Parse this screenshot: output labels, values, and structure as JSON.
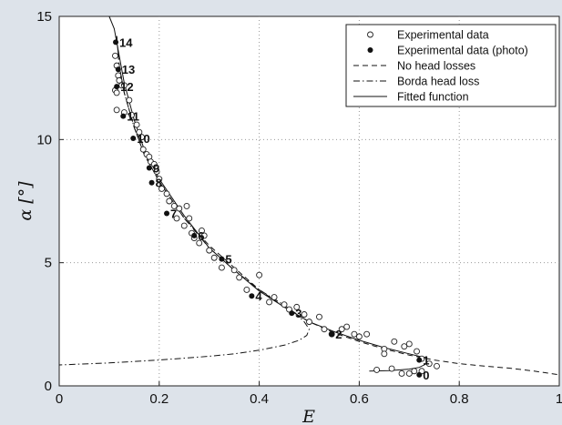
{
  "chart_data": {
    "type": "scatter",
    "title": "",
    "xlabel": "E",
    "ylabel": "α [°]",
    "xlim": [
      0,
      1
    ],
    "ylim": [
      0,
      15
    ],
    "xticks": [
      "0",
      "0.2",
      "0.4",
      "0.6",
      "0.8",
      "1"
    ],
    "xtick_values": [
      0,
      0.2,
      0.4,
      0.6,
      0.8,
      1
    ],
    "yticks": [
      "0",
      "5",
      "10",
      "15"
    ],
    "ytick_values": [
      0,
      5,
      10,
      15
    ],
    "grid": "dotted",
    "legend_position": "top-right",
    "series": [
      {
        "name": "Experimental data",
        "marker": "open-circle",
        "points": [
          [
            0.112,
            13.4
          ],
          [
            0.115,
            13.0
          ],
          [
            0.118,
            12.6
          ],
          [
            0.12,
            12.4
          ],
          [
            0.125,
            12.2
          ],
          [
            0.112,
            12.0
          ],
          [
            0.115,
            11.9
          ],
          [
            0.13,
            12.2
          ],
          [
            0.14,
            11.6
          ],
          [
            0.115,
            11.2
          ],
          [
            0.13,
            11.1
          ],
          [
            0.145,
            11.0
          ],
          [
            0.155,
            10.6
          ],
          [
            0.16,
            10.3
          ],
          [
            0.165,
            10.1
          ],
          [
            0.168,
            9.6
          ],
          [
            0.175,
            9.4
          ],
          [
            0.18,
            9.3
          ],
          [
            0.183,
            9.1
          ],
          [
            0.19,
            9.0
          ],
          [
            0.195,
            8.7
          ],
          [
            0.2,
            8.4
          ],
          [
            0.205,
            8.0
          ],
          [
            0.215,
            7.8
          ],
          [
            0.22,
            7.5
          ],
          [
            0.23,
            7.3
          ],
          [
            0.24,
            7.2
          ],
          [
            0.235,
            6.8
          ],
          [
            0.255,
            7.3
          ],
          [
            0.26,
            6.8
          ],
          [
            0.25,
            6.5
          ],
          [
            0.265,
            6.2
          ],
          [
            0.27,
            6.0
          ],
          [
            0.285,
            6.3
          ],
          [
            0.29,
            6.1
          ],
          [
            0.28,
            5.8
          ],
          [
            0.3,
            5.5
          ],
          [
            0.31,
            5.2
          ],
          [
            0.325,
            4.8
          ],
          [
            0.35,
            4.7
          ],
          [
            0.36,
            4.4
          ],
          [
            0.4,
            4.5
          ],
          [
            0.375,
            3.9
          ],
          [
            0.42,
            3.4
          ],
          [
            0.43,
            3.6
          ],
          [
            0.45,
            3.3
          ],
          [
            0.46,
            3.1
          ],
          [
            0.475,
            3.2
          ],
          [
            0.49,
            2.9
          ],
          [
            0.5,
            2.6
          ],
          [
            0.52,
            2.8
          ],
          [
            0.53,
            2.3
          ],
          [
            0.545,
            2.1
          ],
          [
            0.565,
            2.3
          ],
          [
            0.575,
            2.4
          ],
          [
            0.59,
            2.1
          ],
          [
            0.6,
            2.0
          ],
          [
            0.615,
            2.1
          ],
          [
            0.65,
            1.5
          ],
          [
            0.67,
            1.8
          ],
          [
            0.69,
            1.6
          ],
          [
            0.7,
            1.7
          ],
          [
            0.715,
            1.4
          ],
          [
            0.725,
            1.1
          ],
          [
            0.74,
            0.9
          ],
          [
            0.755,
            0.8
          ],
          [
            0.725,
            0.6
          ],
          [
            0.685,
            0.5
          ],
          [
            0.665,
            0.7
          ],
          [
            0.635,
            0.65
          ],
          [
            0.7,
            0.5
          ],
          [
            0.71,
            0.6
          ],
          [
            0.65,
            1.3
          ]
        ]
      },
      {
        "name": "Experimental data (photo)",
        "marker": "filled-circle",
        "points": [
          {
            "label": "0",
            "x": 0.72,
            "y": 0.45
          },
          {
            "label": "1",
            "x": 0.72,
            "y": 1.05
          },
          {
            "label": "2",
            "x": 0.545,
            "y": 2.1
          },
          {
            "label": "3",
            "x": 0.465,
            "y": 2.95
          },
          {
            "label": "4",
            "x": 0.385,
            "y": 3.65
          },
          {
            "label": "5",
            "x": 0.325,
            "y": 5.15
          },
          {
            "label": "6",
            "x": 0.27,
            "y": 6.1
          },
          {
            "label": "7",
            "x": 0.215,
            "y": 7.0
          },
          {
            "label": "8",
            "x": 0.185,
            "y": 8.25
          },
          {
            "label": "9",
            "x": 0.18,
            "y": 8.85
          },
          {
            "label": "10",
            "x": 0.148,
            "y": 10.05
          },
          {
            "label": "11",
            "x": 0.128,
            "y": 10.95
          },
          {
            "label": "12",
            "x": 0.115,
            "y": 12.15
          },
          {
            "label": "13",
            "x": 0.118,
            "y": 12.85
          },
          {
            "label": "14",
            "x": 0.113,
            "y": 13.95
          }
        ]
      },
      {
        "name": "No head losses",
        "style": "dashed",
        "points": [
          [
            0.115,
            14.2
          ],
          [
            0.12,
            13.0
          ],
          [
            0.13,
            11.9
          ],
          [
            0.15,
            10.5
          ],
          [
            0.17,
            9.4
          ],
          [
            0.2,
            8.3
          ],
          [
            0.25,
            6.8
          ],
          [
            0.3,
            5.7
          ],
          [
            0.35,
            4.8
          ],
          [
            0.4,
            3.9
          ],
          [
            0.45,
            3.2
          ],
          [
            0.5,
            2.6
          ],
          [
            0.55,
            2.15
          ],
          [
            0.6,
            1.8
          ],
          [
            0.65,
            1.5
          ],
          [
            0.7,
            1.25
          ],
          [
            0.75,
            1.05
          ],
          [
            0.8,
            0.9
          ],
          [
            0.85,
            0.8
          ],
          [
            0.9,
            0.72
          ],
          [
            0.95,
            0.6
          ],
          [
            1.0,
            0.45
          ]
        ]
      },
      {
        "name": "Borda head loss",
        "style": "dashdot",
        "points": [
          [
            0.115,
            14.2
          ],
          [
            0.12,
            13.0
          ],
          [
            0.13,
            11.9
          ],
          [
            0.15,
            10.5
          ],
          [
            0.17,
            9.4
          ],
          [
            0.2,
            8.3
          ],
          [
            0.25,
            6.8
          ],
          [
            0.3,
            5.6
          ],
          [
            0.35,
            4.7
          ],
          [
            0.4,
            3.9
          ],
          [
            0.44,
            3.4
          ],
          [
            0.47,
            3.0
          ],
          [
            0.49,
            2.6
          ],
          [
            0.5,
            2.3
          ],
          [
            0.495,
            2.05
          ],
          [
            0.48,
            1.85
          ],
          [
            0.45,
            1.65
          ],
          [
            0.4,
            1.45
          ],
          [
            0.35,
            1.3
          ],
          [
            0.3,
            1.2
          ],
          [
            0.2,
            1.05
          ],
          [
            0.1,
            0.93
          ],
          [
            0.0,
            0.85
          ]
        ]
      },
      {
        "name": "Fitted function",
        "style": "solid",
        "points": [
          [
            0.1,
            15.2
          ],
          [
            0.11,
            14.5
          ],
          [
            0.12,
            13.4
          ],
          [
            0.13,
            12.3
          ],
          [
            0.15,
            10.8
          ],
          [
            0.17,
            9.6
          ],
          [
            0.2,
            8.4
          ],
          [
            0.25,
            6.9
          ],
          [
            0.3,
            5.6
          ],
          [
            0.35,
            4.7
          ],
          [
            0.4,
            3.85
          ],
          [
            0.45,
            3.2
          ],
          [
            0.5,
            2.6
          ],
          [
            0.55,
            2.2
          ],
          [
            0.6,
            1.85
          ],
          [
            0.65,
            1.55
          ],
          [
            0.7,
            1.3
          ],
          [
            0.73,
            1.15
          ]
        ]
      },
      {
        "name": "",
        "style": "solid",
        "points": [
          [
            0.62,
            0.6
          ],
          [
            0.66,
            0.62
          ],
          [
            0.7,
            0.68
          ],
          [
            0.72,
            0.75
          ],
          [
            0.735,
            0.9
          ],
          [
            0.74,
            1.0
          ]
        ]
      }
    ]
  },
  "legend": {
    "items": [
      {
        "name": "Experimental data",
        "marker": "open-circle"
      },
      {
        "name": "Experimental data (photo)",
        "marker": "filled-circle"
      },
      {
        "name": "No head losses",
        "line": "dashed"
      },
      {
        "name": "Borda head loss",
        "line": "dashdot"
      },
      {
        "name": "Fitted function",
        "line": "solid"
      }
    ]
  }
}
